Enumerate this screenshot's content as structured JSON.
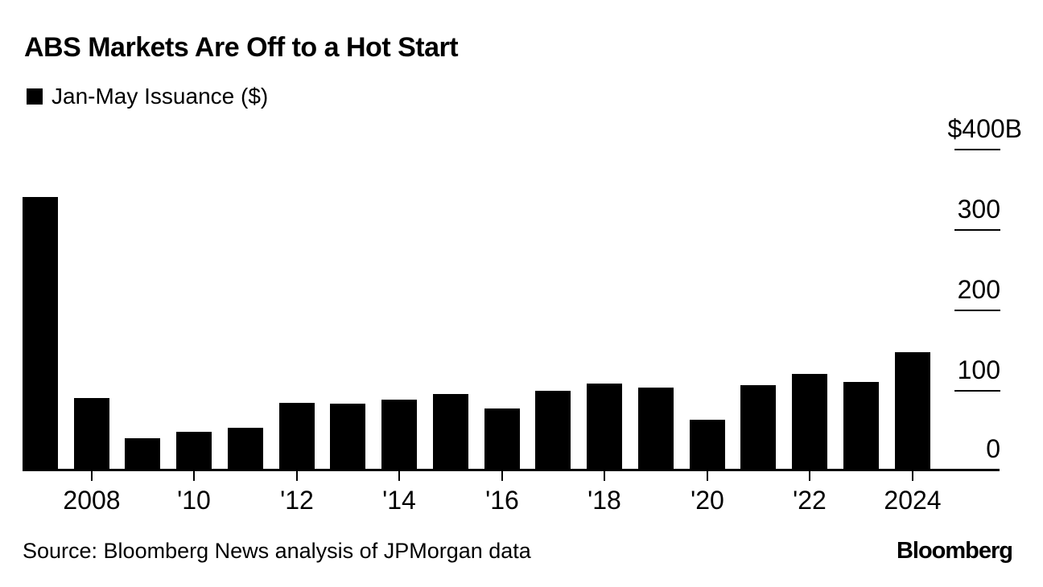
{
  "header": {
    "title": "ABS Markets Are Off to a Hot Start"
  },
  "legend": {
    "label": "Jan-May Issuance ($)",
    "swatch_color": "#000000"
  },
  "footer": {
    "source": "Source: Bloomberg News analysis of JPMorgan data",
    "logo": "Bloomberg"
  },
  "colors": {
    "bar": "#000000",
    "background": "#ffffff",
    "text": "#000000"
  },
  "chart_data": {
    "type": "bar",
    "title": "ABS Markets Are Off to a Hot Start",
    "legend_entries": [
      "Jan-May Issuance ($)"
    ],
    "unit": "$ billions",
    "categories": [
      2007,
      2008,
      2009,
      2010,
      2011,
      2012,
      2013,
      2014,
      2015,
      2016,
      2017,
      2018,
      2019,
      2020,
      2021,
      2022,
      2023,
      2024
    ],
    "values": [
      340,
      90,
      40,
      48,
      53,
      84,
      83,
      88,
      95,
      77,
      99,
      108,
      103,
      63,
      106,
      120,
      110,
      147
    ],
    "ylim": [
      0,
      400
    ],
    "y_ticks": [
      {
        "value": 400,
        "label": "$400B"
      },
      {
        "value": 300,
        "label": "300"
      },
      {
        "value": 200,
        "label": "200"
      },
      {
        "value": 100,
        "label": "100"
      },
      {
        "value": 0,
        "label": "0"
      }
    ],
    "x_ticks": [
      {
        "year": 2008,
        "label": "2008"
      },
      {
        "year": 2010,
        "label": "'10"
      },
      {
        "year": 2012,
        "label": "'12"
      },
      {
        "year": 2014,
        "label": "'14"
      },
      {
        "year": 2016,
        "label": "'16"
      },
      {
        "year": 2018,
        "label": "'18"
      },
      {
        "year": 2020,
        "label": "'20"
      },
      {
        "year": 2022,
        "label": "'22"
      },
      {
        "year": 2024,
        "label": "2024"
      }
    ],
    "axis_side": "right",
    "grid": "off",
    "legend_position": "top-left"
  }
}
